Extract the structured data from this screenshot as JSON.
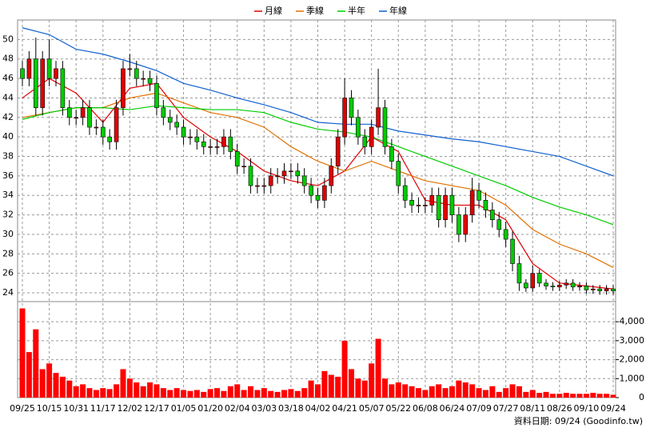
{
  "chart_data": {
    "type": "candlestick",
    "categories": [
      "09/25",
      null,
      null,
      null,
      "10/15",
      null,
      null,
      null,
      "10/31",
      null,
      null,
      null,
      "11/17",
      null,
      null,
      null,
      "12/02",
      null,
      null,
      null,
      "12/17",
      null,
      null,
      null,
      "01/05",
      null,
      null,
      null,
      "01/20",
      null,
      null,
      null,
      "02/04",
      null,
      null,
      null,
      "03/03",
      null,
      null,
      null,
      "03/18",
      null,
      null,
      null,
      "04/02",
      null,
      null,
      null,
      "04/21",
      null,
      null,
      null,
      "05/07",
      null,
      null,
      null,
      "05/22",
      null,
      null,
      null,
      "06/08",
      null,
      null,
      null,
      "06/24",
      null,
      null,
      null,
      "07/09",
      null,
      null,
      null,
      "07/27",
      null,
      null,
      null,
      "08/11",
      null,
      null,
      null,
      "08/26",
      null,
      null,
      null,
      "09/10",
      null,
      null,
      null,
      "09/24"
    ],
    "open": [
      47,
      46,
      48,
      43,
      48,
      46,
      47,
      43,
      42,
      42,
      43,
      41,
      41,
      40,
      39.5,
      43,
      47,
      47,
      46,
      46,
      45.5,
      43,
      42,
      41.5,
      41,
      40,
      40,
      39.5,
      39,
      39,
      39,
      40,
      38.5,
      37,
      37,
      35,
      35,
      35,
      36,
      36,
      36.5,
      36.5,
      36,
      35,
      34,
      33.5,
      35,
      37,
      40,
      44,
      42,
      40,
      39,
      41,
      43,
      39,
      37.5,
      35,
      33.5,
      33,
      33,
      33,
      34,
      31.5,
      34,
      32,
      30,
      32,
      34.5,
      33.5,
      32.5,
      31.5,
      30.5,
      29.5,
      27,
      25,
      24.5,
      26,
      25,
      24.7,
      24.6,
      24.8,
      25,
      24.6,
      24.7,
      24.3,
      24.4,
      24.2,
      24.4
    ],
    "high": [
      47.8,
      48.8,
      50.2,
      48.8,
      50,
      47.8,
      47.8,
      43.8,
      42.8,
      43.8,
      43.8,
      41.8,
      41.8,
      40.8,
      43.8,
      47.8,
      48.5,
      47.8,
      46.8,
      46.8,
      46.3,
      43.8,
      42.8,
      42.3,
      41.8,
      40.8,
      40.8,
      40.3,
      39.8,
      39.8,
      40.8,
      40.8,
      39.3,
      37.8,
      37.8,
      35.8,
      35.8,
      36.8,
      36.8,
      37.3,
      37.3,
      37.3,
      36.8,
      35.8,
      34.8,
      35.8,
      37.8,
      40.8,
      46,
      44.8,
      42.8,
      40.8,
      41.8,
      47,
      43.8,
      39.8,
      38.3,
      35.8,
      34.3,
      33.8,
      33.8,
      34.8,
      34.8,
      34.8,
      34.8,
      32.8,
      32.8,
      35.8,
      35.3,
      34.3,
      33.3,
      32.3,
      31.3,
      30.3,
      27.8,
      25.4,
      26.8,
      26.4,
      25.4,
      25.1,
      25.2,
      25.4,
      25.4,
      25.1,
      25.1,
      24.8,
      24.8,
      24.8,
      24.8
    ],
    "low": [
      45.2,
      45.2,
      42.2,
      42.2,
      45.2,
      45.2,
      42.2,
      41.2,
      41.2,
      41.2,
      40.2,
      40.2,
      39.2,
      38.7,
      38.7,
      42.2,
      46.2,
      45.2,
      45.2,
      44.7,
      42.2,
      41.2,
      40.7,
      40.2,
      39.2,
      39.2,
      38.7,
      38.2,
      38.2,
      38.2,
      38.2,
      37.7,
      36.2,
      36.2,
      34.2,
      34.2,
      34.2,
      34.2,
      35.2,
      35.2,
      35.7,
      35.2,
      34.2,
      33.2,
      32.7,
      32.7,
      34.2,
      36.2,
      39.2,
      41.2,
      39.2,
      38.2,
      38.2,
      40.2,
      38.2,
      36.7,
      34.2,
      32.7,
      32.2,
      32.2,
      32.2,
      32.2,
      30.7,
      30.7,
      31.2,
      29.2,
      29.2,
      31.2,
      32.7,
      31.7,
      30.7,
      29.7,
      28.7,
      26.2,
      24.2,
      24.1,
      24.1,
      24.6,
      24.3,
      24.2,
      24.2,
      24.4,
      24.2,
      24.2,
      23.9,
      23.9,
      23.8,
      23.8,
      23.8
    ],
    "close": [
      46,
      48,
      43,
      48,
      46,
      47,
      43,
      42,
      42,
      43,
      41,
      41,
      40,
      39.5,
      43,
      47,
      47,
      46,
      46,
      45.5,
      43,
      42,
      41.5,
      41,
      40,
      40,
      39.5,
      39,
      39,
      39,
      40,
      38.5,
      37,
      37,
      35,
      35,
      35,
      36,
      36,
      36.5,
      36.5,
      36,
      35,
      34,
      33.5,
      35,
      37,
      40,
      44,
      42,
      40,
      39,
      41,
      43,
      39,
      37.5,
      35,
      33.5,
      33,
      33,
      33,
      34,
      31.5,
      34,
      32,
      30,
      32,
      34.5,
      33.5,
      32.5,
      31.5,
      30.5,
      29.5,
      27,
      25,
      24.5,
      26,
      25,
      24.7,
      24.6,
      24.8,
      25,
      24.6,
      24.7,
      24.3,
      24.4,
      24.2,
      24.4,
      24.2
    ],
    "up_color": "#e00000",
    "down_color": "#00cc00",
    "ylim": [
      23.1,
      52
    ],
    "yticks": [
      24,
      26,
      28,
      30,
      32,
      34,
      36,
      38,
      40,
      42,
      44,
      46,
      48,
      50
    ],
    "grid": true,
    "moving_averages": [
      {
        "name": "月線",
        "color": "#e00000",
        "x": [
          0,
          4,
          8,
          12,
          16,
          20,
          24,
          28,
          32,
          36,
          40,
          44,
          48,
          52,
          56,
          60,
          64,
          68,
          72,
          76,
          80,
          84,
          88
        ],
        "values": [
          44,
          46,
          44.5,
          41.5,
          45,
          45.5,
          42,
          40,
          38.5,
          36.5,
          35.5,
          35,
          36.5,
          40,
          38.5,
          33.5,
          33,
          33,
          31.5,
          27,
          25,
          24.7,
          24.4
        ]
      },
      {
        "name": "季線",
        "color": "#e07000",
        "x": [
          0,
          4,
          8,
          12,
          16,
          20,
          24,
          28,
          32,
          36,
          40,
          44,
          48,
          52,
          56,
          60,
          64,
          68,
          72,
          76,
          80,
          84,
          88
        ],
        "values": [
          42,
          42.5,
          43,
          43,
          44,
          44.5,
          43.5,
          42.5,
          42,
          41,
          39,
          37.5,
          36.5,
          37.5,
          36.5,
          35.5,
          35,
          34.5,
          33,
          30.5,
          29,
          28,
          26.6
        ]
      },
      {
        "name": "半年",
        "color": "#00cc00",
        "x": [
          0,
          4,
          8,
          12,
          16,
          20,
          24,
          28,
          32,
          36,
          40,
          44,
          48,
          52,
          56,
          60,
          64,
          68,
          72,
          76,
          80,
          84,
          88
        ],
        "values": [
          41.8,
          42.5,
          43,
          43,
          42.8,
          43.2,
          43,
          42.8,
          42.8,
          42.5,
          41.5,
          40.8,
          40.5,
          40,
          39,
          38,
          37,
          36,
          35,
          33.8,
          32.8,
          32,
          31
        ]
      },
      {
        "name": "年線",
        "color": "#1060d0",
        "x": [
          0,
          4,
          8,
          12,
          16,
          20,
          24,
          28,
          32,
          36,
          40,
          44,
          48,
          52,
          56,
          60,
          64,
          68,
          72,
          76,
          80,
          84,
          88
        ],
        "values": [
          51.2,
          50.5,
          49,
          48.5,
          47.7,
          46.8,
          45.5,
          44.8,
          44,
          43.3,
          42.5,
          41.5,
          41.3,
          41.3,
          40.6,
          40.2,
          39.8,
          39.5,
          39,
          38.5,
          38,
          37,
          36
        ]
      }
    ],
    "volume": {
      "color": "#ff0000",
      "values": [
        4700,
        2400,
        3600,
        1500,
        1800,
        1300,
        1100,
        900,
        600,
        700,
        500,
        400,
        500,
        450,
        700,
        1500,
        1000,
        800,
        600,
        800,
        700,
        500,
        400,
        500,
        400,
        350,
        400,
        300,
        450,
        500,
        350,
        600,
        700,
        400,
        600,
        400,
        500,
        350,
        300,
        400,
        450,
        350,
        500,
        900,
        700,
        1400,
        1200,
        1100,
        3000,
        1500,
        1000,
        900,
        1800,
        3100,
        1000,
        700,
        800,
        700,
        600,
        500,
        400,
        600,
        700,
        500,
        600,
        900,
        800,
        700,
        500,
        400,
        600,
        300,
        500,
        700,
        600,
        300,
        400,
        250,
        300,
        200,
        200,
        250,
        200,
        200,
        200,
        250,
        200,
        200,
        150
      ],
      "ylim": [
        0,
        5060
      ],
      "yticks": [
        0,
        {
          "value": 1000,
          "label": "1,000"
        },
        {
          "value": 2000,
          "label": "2,000"
        },
        {
          "value": 3000,
          "label": "3,000"
        },
        {
          "value": 4000,
          "label": "4,000"
        }
      ]
    },
    "footer": "資料日期: 09/24  (Goodinfo.tw)"
  }
}
